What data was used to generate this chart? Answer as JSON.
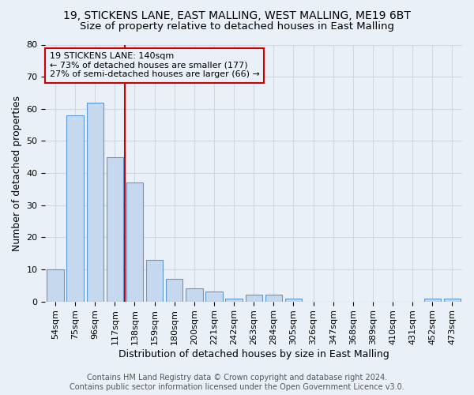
{
  "title_line1": "19, STICKENS LANE, EAST MALLING, WEST MALLING, ME19 6BT",
  "title_line2": "Size of property relative to detached houses in East Malling",
  "xlabel": "Distribution of detached houses by size in East Malling",
  "ylabel": "Number of detached properties",
  "categories": [
    "54sqm",
    "75sqm",
    "96sqm",
    "117sqm",
    "138sqm",
    "159sqm",
    "180sqm",
    "200sqm",
    "221sqm",
    "242sqm",
    "263sqm",
    "284sqm",
    "305sqm",
    "326sqm",
    "347sqm",
    "368sqm",
    "389sqm",
    "410sqm",
    "431sqm",
    "452sqm",
    "473sqm"
  ],
  "values": [
    10,
    58,
    62,
    45,
    37,
    13,
    7,
    4,
    3,
    1,
    2,
    2,
    1,
    0,
    0,
    0,
    0,
    0,
    0,
    1,
    1
  ],
  "bar_color": "#c5d8ed",
  "bar_edge_color": "#5b9bd5",
  "grid_color": "#d0d8e4",
  "background_color": "#eaf0f8",
  "vline_index": 4,
  "vline_color": "#cc0000",
  "annotation_line1": "19 STICKENS LANE: 140sqm",
  "annotation_line2": "← 73% of detached houses are smaller (177)",
  "annotation_line3": "27% of semi-detached houses are larger (66) →",
  "annotation_box_color": "#cc0000",
  "ylim": [
    0,
    80
  ],
  "yticks": [
    0,
    10,
    20,
    30,
    40,
    50,
    60,
    70,
    80
  ],
  "footer_line1": "Contains HM Land Registry data © Crown copyright and database right 2024.",
  "footer_line2": "Contains public sector information licensed under the Open Government Licence v3.0.",
  "title_fontsize": 10,
  "subtitle_fontsize": 9.5,
  "axis_label_fontsize": 9,
  "tick_fontsize": 8,
  "annotation_fontsize": 8,
  "footer_fontsize": 7
}
